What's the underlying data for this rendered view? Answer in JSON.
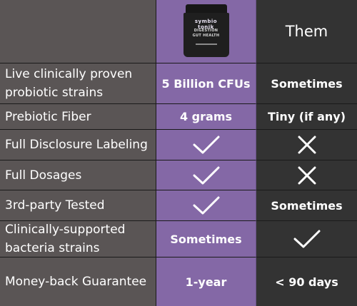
{
  "header": {
    "product_brand": "symbio tonik",
    "product_line1": "DIGESTION",
    "product_line2": "GUT HEALTH",
    "them_label": "Them"
  },
  "rows": [
    {
      "feature": "Live clinically proven probiotic strains",
      "ours": "5 Billion CFUs",
      "them": "Sometimes"
    },
    {
      "feature": "Prebiotic Fiber",
      "ours": "4 grams",
      "them": "Tiny (if any)"
    },
    {
      "feature": "Full Disclosure Labeling",
      "ours_icon": "check-icon",
      "them_icon": "x-icon"
    },
    {
      "feature": "Full Dosages",
      "ours_icon": "check-icon",
      "them_icon": "x-icon"
    },
    {
      "feature": "3rd-party Tested",
      "ours_icon": "check-icon",
      "them": "Sometimes"
    },
    {
      "feature": "Clinically-supported bacteria strains",
      "ours": "Sometimes",
      "them_icon": "check-icon"
    },
    {
      "feature": "Money-back Guarantee",
      "ours": "1-year",
      "them": "< 90 days"
    }
  ],
  "colors": {
    "feature_bg": "#5a5555",
    "ours_bg": "#8468a6",
    "them_bg": "#333333",
    "text": "#ffffff"
  }
}
